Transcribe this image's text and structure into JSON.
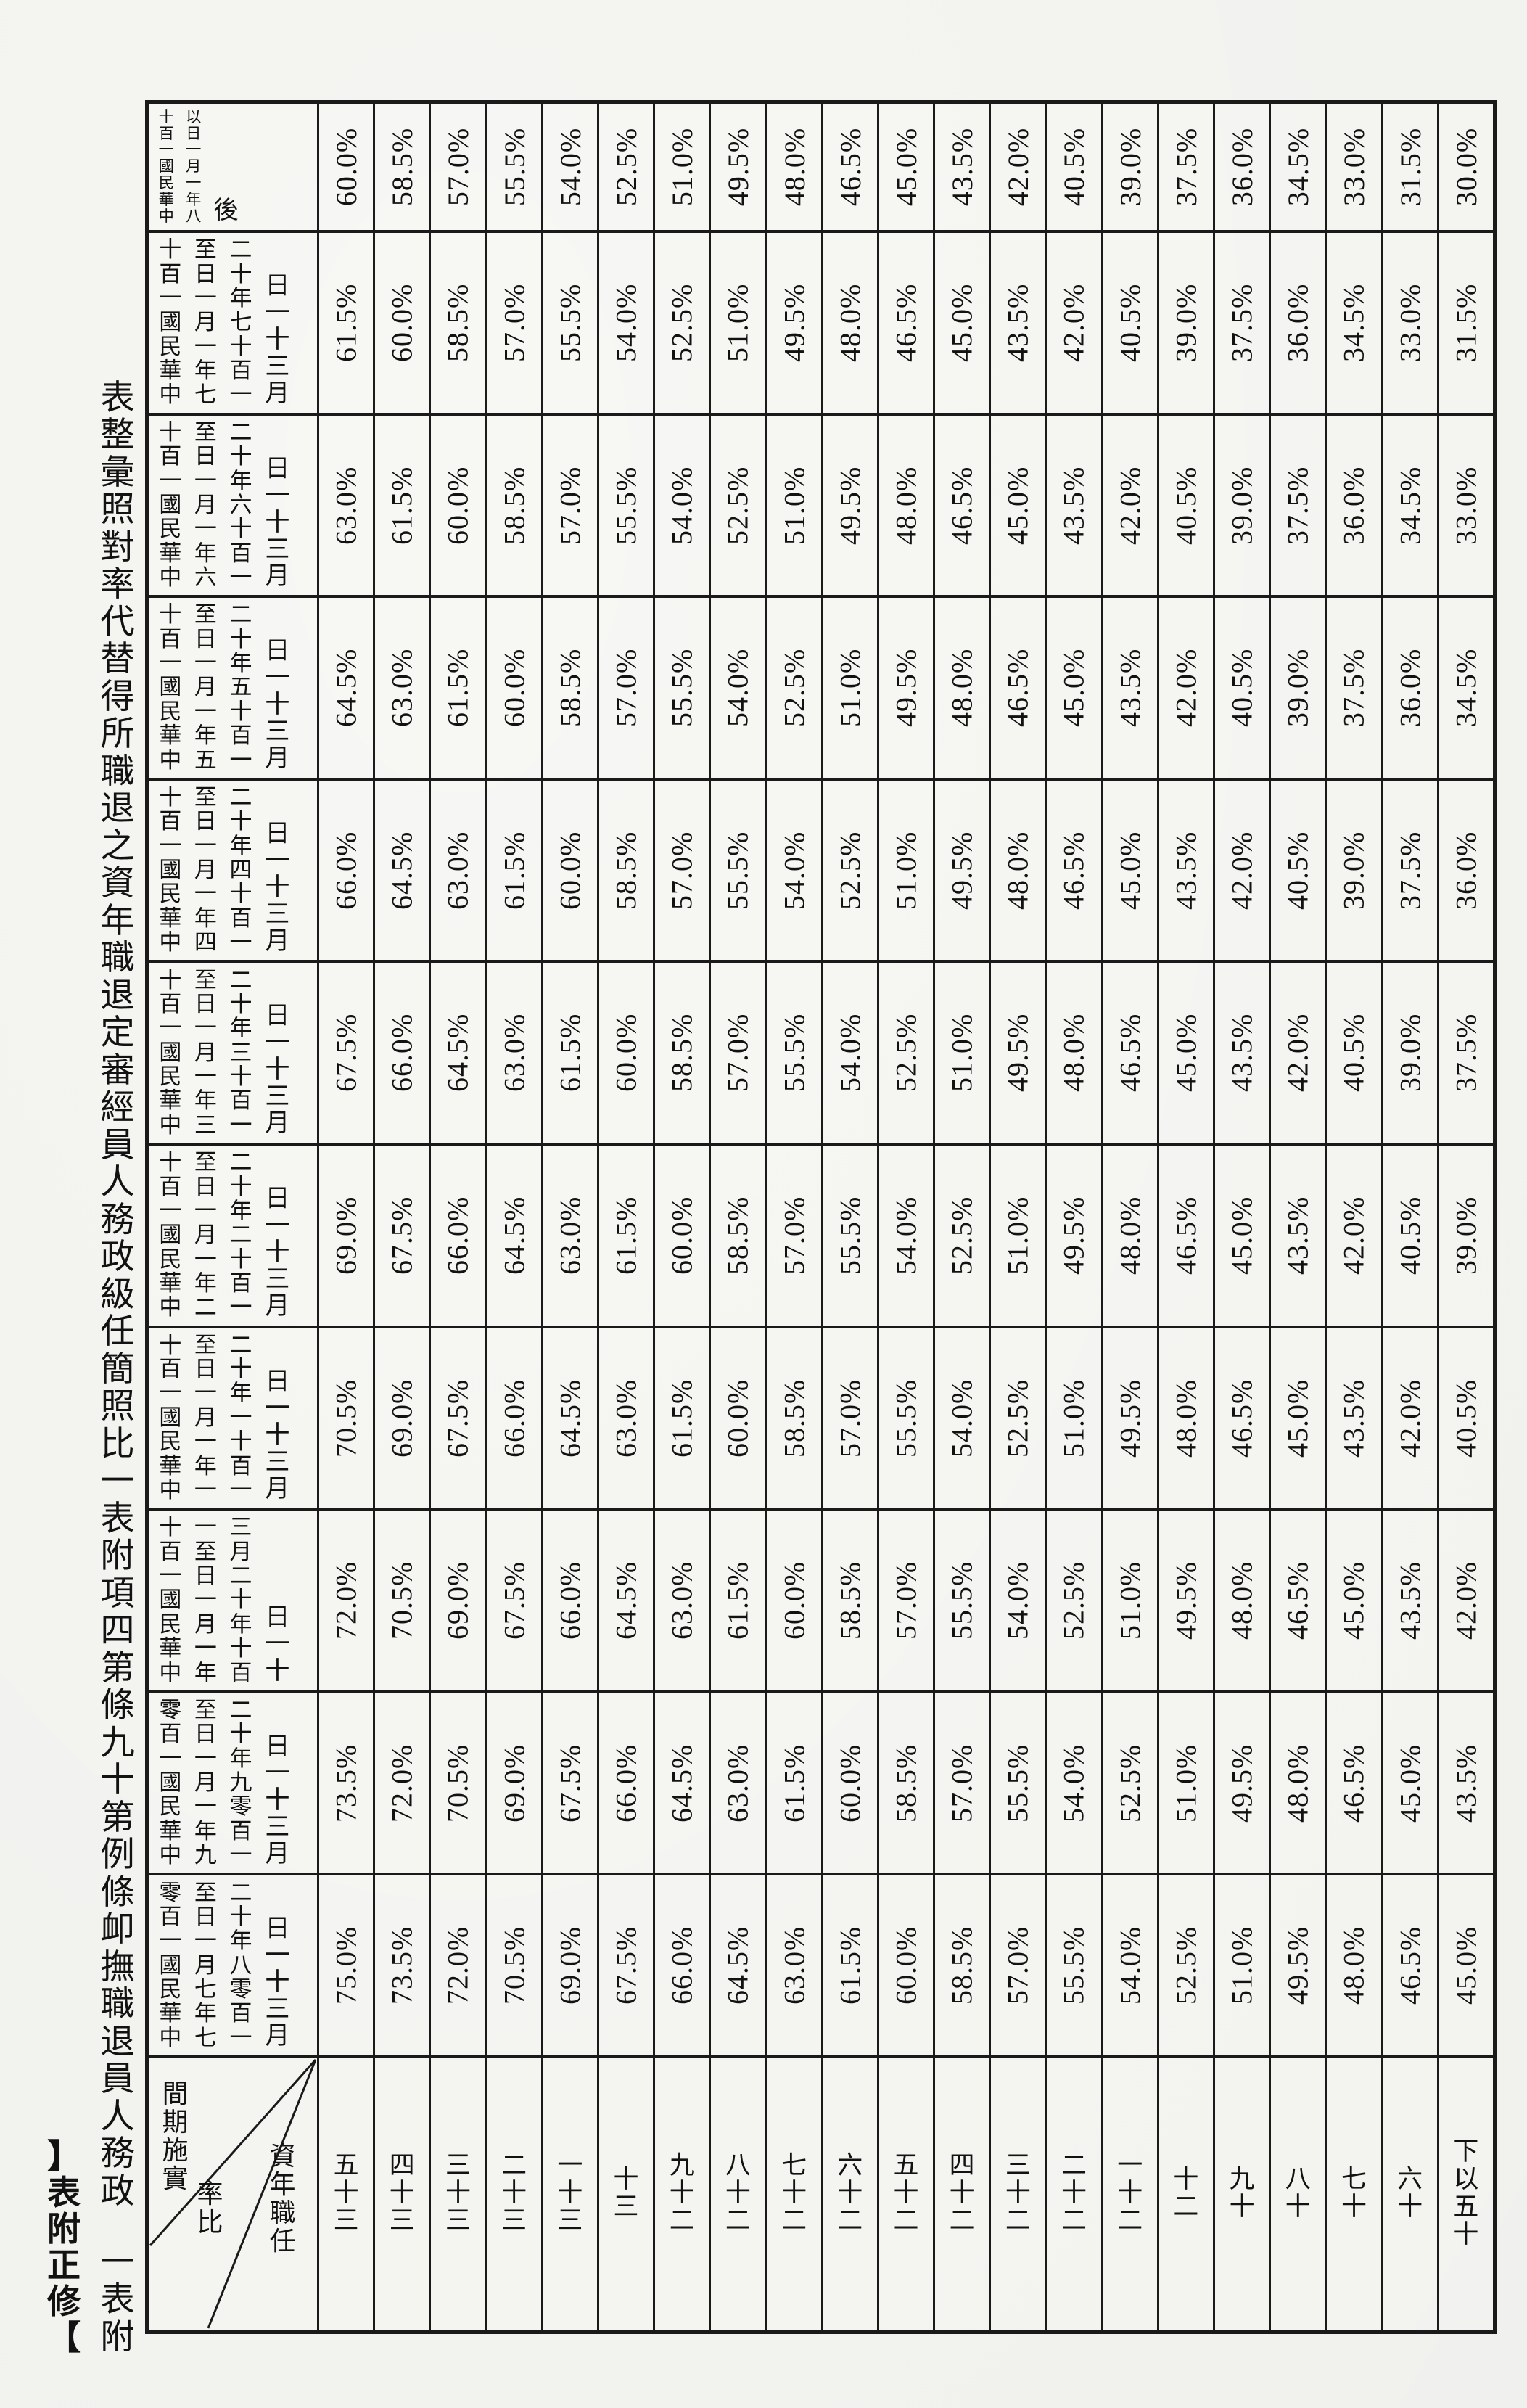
{
  "document": {
    "tag_label": "【修正附表】",
    "title": "附表一　政務人員退職撫卹條例第十九條第四項附表一比照簡任級政務人員經審定退職年資之退職所得替代率對照彙整表"
  },
  "table": {
    "corner": {
      "top_label": "實施期間",
      "middle_label": "比率",
      "bottom_label": "任職年資"
    },
    "service_years": [
      "三十五",
      "三十四",
      "三十三",
      "三十二",
      "三十一",
      "三十",
      "二十九",
      "二十八",
      "二十七",
      "二十六",
      "二十五",
      "二十四",
      "二十三",
      "二十二",
      "二十一",
      "二十",
      "十九",
      "十八",
      "十七",
      "十六",
      "十五以下"
    ],
    "periods": [
      {
        "label": "中華民國一百十八年一月一日以後",
        "lines": [
          "中華民國一百十",
          "八年一月一日以",
          "後"
        ],
        "values": [
          "60.0%",
          "58.5%",
          "57.0%",
          "55.5%",
          "54.0%",
          "52.5%",
          "51.0%",
          "49.5%",
          "48.0%",
          "46.5%",
          "45.0%",
          "43.5%",
          "42.0%",
          "40.5%",
          "39.0%",
          "37.5%",
          "36.0%",
          "34.5%",
          "33.0%",
          "31.5%",
          "30.0%"
        ]
      },
      {
        "label": "中華民國一百十七年一月一日至一百十七年十二月三十一日",
        "lines": [
          "中華民國一百十",
          "七年一月一日至",
          "一百十七年十二",
          "月三十一日"
        ],
        "values": [
          "61.5%",
          "60.0%",
          "58.5%",
          "57.0%",
          "55.5%",
          "54.0%",
          "52.5%",
          "51.0%",
          "49.5%",
          "48.0%",
          "46.5%",
          "45.0%",
          "43.5%",
          "42.0%",
          "40.5%",
          "39.0%",
          "37.5%",
          "36.0%",
          "34.5%",
          "33.0%",
          "31.5%"
        ]
      },
      {
        "label": "中華民國一百十六年一月一日至一百十六年十二月三十一日",
        "lines": [
          "中華民國一百十",
          "六年一月一日至",
          "一百十六年十二",
          "月三十一日"
        ],
        "values": [
          "63.0%",
          "61.5%",
          "60.0%",
          "58.5%",
          "57.0%",
          "55.5%",
          "54.0%",
          "52.5%",
          "51.0%",
          "49.5%",
          "48.0%",
          "46.5%",
          "45.0%",
          "43.5%",
          "42.0%",
          "40.5%",
          "39.0%",
          "37.5%",
          "36.0%",
          "34.5%",
          "33.0%"
        ]
      },
      {
        "label": "中華民國一百十五年一月一日至一百十五年十二月三十一日",
        "lines": [
          "中華民國一百十",
          "五年一月一日至",
          "一百十五年十二",
          "月三十一日"
        ],
        "values": [
          "64.5%",
          "63.0%",
          "61.5%",
          "60.0%",
          "58.5%",
          "57.0%",
          "55.5%",
          "54.0%",
          "52.5%",
          "51.0%",
          "49.5%",
          "48.0%",
          "46.5%",
          "45.0%",
          "43.5%",
          "42.0%",
          "40.5%",
          "39.0%",
          "37.5%",
          "36.0%",
          "34.5%"
        ]
      },
      {
        "label": "中華民國一百十四年一月一日至一百十四年十二月三十一日",
        "lines": [
          "中華民國一百十",
          "四年一月一日至",
          "一百十四年十二",
          "月三十一日"
        ],
        "values": [
          "66.0%",
          "64.5%",
          "63.0%",
          "61.5%",
          "60.0%",
          "58.5%",
          "57.0%",
          "55.5%",
          "54.0%",
          "52.5%",
          "51.0%",
          "49.5%",
          "48.0%",
          "46.5%",
          "45.0%",
          "43.5%",
          "42.0%",
          "40.5%",
          "39.0%",
          "37.5%",
          "36.0%"
        ]
      },
      {
        "label": "中華民國一百十三年一月一日至一百十三年十二月三十一日",
        "lines": [
          "中華民國一百十",
          "三年一月一日至",
          "一百十三年十二",
          "月三十一日"
        ],
        "values": [
          "67.5%",
          "66.0%",
          "64.5%",
          "63.0%",
          "61.5%",
          "60.0%",
          "58.5%",
          "57.0%",
          "55.5%",
          "54.0%",
          "52.5%",
          "51.0%",
          "49.5%",
          "48.0%",
          "46.5%",
          "45.0%",
          "43.5%",
          "42.0%",
          "40.5%",
          "39.0%",
          "37.5%"
        ]
      },
      {
        "label": "中華民國一百十二年一月一日至一百十二年十二月三十一日",
        "lines": [
          "中華民國一百十",
          "二年一月一日至",
          "一百十二年十二",
          "月三十一日"
        ],
        "values": [
          "69.0%",
          "67.5%",
          "66.0%",
          "64.5%",
          "63.0%",
          "61.5%",
          "60.0%",
          "58.5%",
          "57.0%",
          "55.5%",
          "54.0%",
          "52.5%",
          "51.0%",
          "49.5%",
          "48.0%",
          "46.5%",
          "45.0%",
          "43.5%",
          "42.0%",
          "40.5%",
          "39.0%"
        ]
      },
      {
        "label": "中華民國一百十一年一月一日至一百十一年十二月三十一日",
        "lines": [
          "中華民國一百十",
          "一年一月一日至",
          "一百十一年十二",
          "月三十一日"
        ],
        "values": [
          "70.5%",
          "69.0%",
          "67.5%",
          "66.0%",
          "64.5%",
          "63.0%",
          "61.5%",
          "60.0%",
          "58.5%",
          "57.0%",
          "55.5%",
          "54.0%",
          "52.5%",
          "51.0%",
          "49.5%",
          "48.0%",
          "46.5%",
          "45.0%",
          "43.5%",
          "42.0%",
          "40.5%"
        ]
      },
      {
        "label": "中華民國一百十年一月一日至一百十年十二月三十一日",
        "lines": [
          "中華民國一百十",
          "年一月一日至一",
          "百十年十二月三",
          "十一日"
        ],
        "values": [
          "72.0%",
          "70.5%",
          "69.0%",
          "67.5%",
          "66.0%",
          "64.5%",
          "63.0%",
          "61.5%",
          "60.0%",
          "58.5%",
          "57.0%",
          "55.5%",
          "54.0%",
          "52.5%",
          "51.0%",
          "49.5%",
          "48.0%",
          "46.5%",
          "45.0%",
          "43.5%",
          "42.0%"
        ]
      },
      {
        "label": "中華民國一百零九年一月一日至一百零九年十二月三十一日",
        "lines": [
          "中華民國一百零",
          "九年一月一日至",
          "一百零九年十二",
          "月三十一日"
        ],
        "values": [
          "73.5%",
          "72.0%",
          "70.5%",
          "69.0%",
          "67.5%",
          "66.0%",
          "64.5%",
          "63.0%",
          "61.5%",
          "60.0%",
          "58.5%",
          "57.0%",
          "55.5%",
          "54.0%",
          "52.5%",
          "51.0%",
          "49.5%",
          "48.0%",
          "46.5%",
          "45.0%",
          "43.5%"
        ]
      },
      {
        "label": "中華民國一百零七年七月一日至一百零八年十二月三十一日",
        "lines": [
          "中華民國一百零",
          "七年七月一日至",
          "一百零八年十二",
          "月三十一日"
        ],
        "values": [
          "75.0%",
          "73.5%",
          "72.0%",
          "70.5%",
          "69.0%",
          "67.5%",
          "66.0%",
          "64.5%",
          "63.0%",
          "61.5%",
          "60.0%",
          "58.5%",
          "57.0%",
          "55.5%",
          "54.0%",
          "52.5%",
          "51.0%",
          "49.5%",
          "48.0%",
          "46.5%",
          "45.0%"
        ]
      }
    ]
  }
}
